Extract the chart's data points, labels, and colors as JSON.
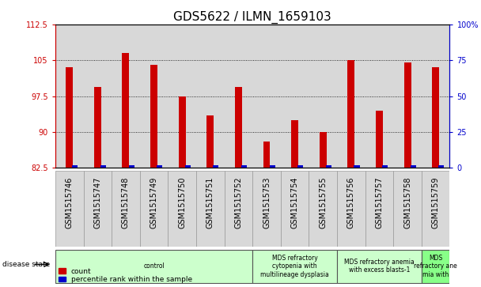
{
  "title": "GDS5622 / ILMN_1659103",
  "samples": [
    "GSM1515746",
    "GSM1515747",
    "GSM1515748",
    "GSM1515749",
    "GSM1515750",
    "GSM1515751",
    "GSM1515752",
    "GSM1515753",
    "GSM1515754",
    "GSM1515755",
    "GSM1515756",
    "GSM1515757",
    "GSM1515758",
    "GSM1515759"
  ],
  "count_values": [
    103.5,
    99.5,
    106.5,
    104.0,
    97.5,
    93.5,
    99.5,
    88.0,
    92.5,
    90.0,
    105.0,
    94.5,
    104.5,
    103.5
  ],
  "percentile_values": [
    2.0,
    2.0,
    2.0,
    2.0,
    2.0,
    2.0,
    2.0,
    2.0,
    2.0,
    2.0,
    2.0,
    2.0,
    2.0,
    2.0
  ],
  "ylim_left": [
    82.5,
    112.5
  ],
  "ylim_right": [
    0,
    100
  ],
  "yticks_left": [
    82.5,
    90.0,
    97.5,
    105.0,
    112.5
  ],
  "yticks_right": [
    0,
    25,
    50,
    75,
    100
  ],
  "bar_bottom": 82.5,
  "red_color": "#cc0000",
  "blue_color": "#0000cc",
  "bg_color": "#ffffff",
  "cell_color": "#d8d8d8",
  "disease_groups": [
    {
      "label": "control",
      "start": 0,
      "end": 7,
      "color": "#ccffcc"
    },
    {
      "label": "MDS refractory\ncytopenia with\nmultilineage dysplasia",
      "start": 7,
      "end": 10,
      "color": "#ccffcc"
    },
    {
      "label": "MDS refractory anemia\nwith excess blasts-1",
      "start": 10,
      "end": 13,
      "color": "#ccffcc"
    },
    {
      "label": "MDS\nrefractory ane\nmia with",
      "start": 13,
      "end": 14,
      "color": "#88ff88"
    }
  ],
  "bar_width": 0.25,
  "percentile_bar_width": 0.2,
  "title_fontsize": 11,
  "tick_fontsize": 7,
  "label_fontsize": 7,
  "n_samples": 14
}
